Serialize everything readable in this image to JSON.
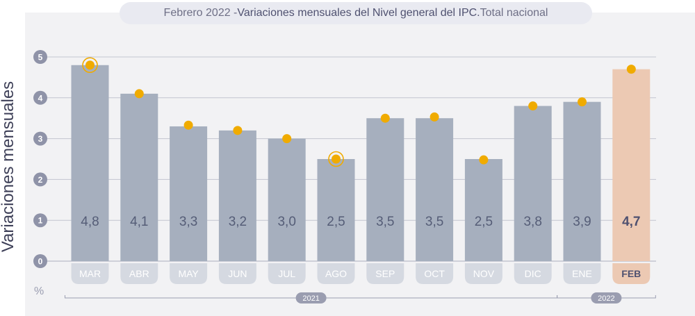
{
  "header": {
    "title_prefix": "Febrero 2022 - ",
    "title_main": "Variaciones mensuales del Nivel general del IPC.",
    "title_suffix": " Total nacional"
  },
  "axis": {
    "ylabel": "Variaciones mensuales",
    "unit": "%"
  },
  "chart_data": {
    "type": "bar",
    "title": "Febrero 2022 - Variaciones mensuales del Nivel general del IPC. Total nacional",
    "ylabel": "Variaciones mensuales",
    "unit": "%",
    "ylim": [
      0,
      5
    ],
    "yticks": [
      0,
      1,
      2,
      3,
      4,
      5
    ],
    "grid": true,
    "categories": [
      "MAR",
      "ABR",
      "MAY",
      "JUN",
      "JUL",
      "AGO",
      "SEP",
      "OCT",
      "NOV",
      "DIC",
      "ENE",
      "FEB"
    ],
    "values": [
      4.8,
      4.1,
      3.3,
      3.2,
      3.0,
      2.5,
      3.5,
      3.5,
      2.5,
      3.8,
      3.9,
      4.7
    ],
    "value_labels": [
      "4,8",
      "4,1",
      "3,3",
      "3,2",
      "3,0",
      "2,5",
      "3,5",
      "3,5",
      "2,5",
      "3,8",
      "3,9",
      "4,7"
    ],
    "markers": [
      4.8,
      4.1,
      3.33,
      3.2,
      3.0,
      2.5,
      3.5,
      3.53,
      2.48,
      3.8,
      3.9,
      4.7
    ],
    "marker_highlight": [
      true,
      false,
      false,
      false,
      false,
      true,
      false,
      false,
      false,
      false,
      false,
      false
    ],
    "year_groups": [
      {
        "label": "2021",
        "from": 0,
        "to": 9
      },
      {
        "label": "2022",
        "from": 10,
        "to": 11
      }
    ],
    "highlight_index": 11,
    "colors": {
      "bar": "#a6afbe",
      "bar_highlight": "#ecc9b3",
      "marker": "#f0ab00",
      "value_text": "#555d77",
      "value_text_highlight": "#4f5170",
      "grid": "#c3c5d0"
    }
  }
}
